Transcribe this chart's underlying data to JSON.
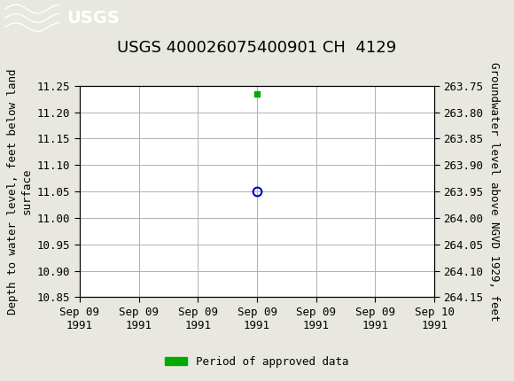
{
  "title": "USGS 400026075400901 CH  4129",
  "header_color": "#1a6b3c",
  "bg_color": "#e8e8e0",
  "plot_bg_color": "#ffffff",
  "grid_color": "#b0b0b0",
  "ylabel_left": "Depth to water level, feet below land\nsurface",
  "ylabel_right": "Groundwater level above NGVD 1929, feet",
  "ylim_left_top": 10.85,
  "ylim_left_bottom": 11.25,
  "ylim_right_top": 264.15,
  "ylim_right_bottom": 263.75,
  "yticks_left": [
    10.85,
    10.9,
    10.95,
    11.0,
    11.05,
    11.1,
    11.15,
    11.2,
    11.25
  ],
  "yticks_right": [
    264.15,
    264.1,
    264.05,
    264.0,
    263.95,
    263.9,
    263.85,
    263.8,
    263.75
  ],
  "ytick_labels_right": [
    "264.15",
    "264.10",
    "264.05",
    "264.00",
    "263.95",
    "263.90",
    "263.85",
    "263.80",
    "263.75"
  ],
  "xtick_labels": [
    "Sep 09\n1991",
    "Sep 09\n1991",
    "Sep 09\n1991",
    "Sep 09\n1991",
    "Sep 09\n1991",
    "Sep 09\n1991",
    "Sep 10\n1991"
  ],
  "data_point_x": 3.0,
  "data_point_y": 11.05,
  "data_point_color": "#0000cc",
  "green_marker_x": 3.0,
  "green_marker_y": 11.235,
  "green_marker_color": "#00aa00",
  "legend_label": "Period of approved data",
  "legend_color": "#00aa00",
  "title_fontsize": 13,
  "axis_fontsize": 9,
  "tick_fontsize": 9,
  "num_xticks": 7,
  "xmin": 0,
  "xmax": 6
}
